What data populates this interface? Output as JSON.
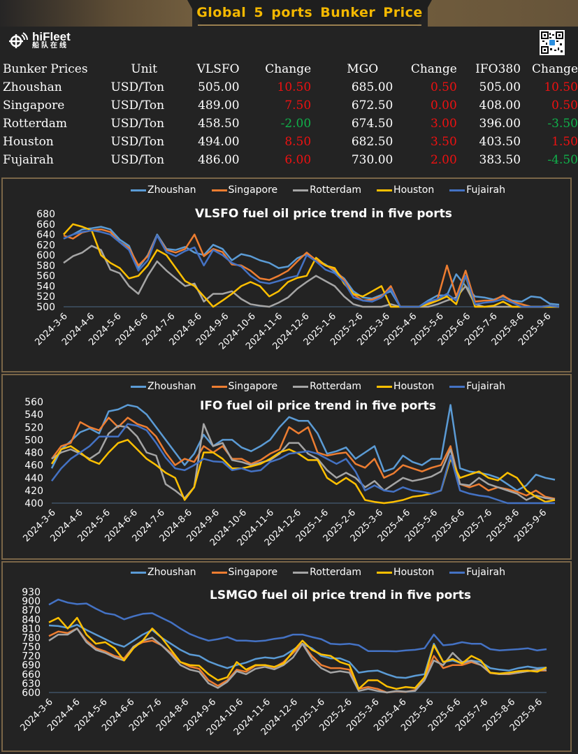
{
  "header": {
    "title": "Global 5 ports  Bunker Price",
    "logo_name": "hiFleet",
    "logo_sub": "船队在线",
    "qr_code": "qr-code"
  },
  "table": {
    "columns": [
      "Bunker Prices",
      "Unit",
      "VLSFO",
      "Change",
      "MGO",
      "Change",
      "IFO380",
      "Change"
    ],
    "rows": [
      {
        "port": "Zhoushan",
        "unit": "USD/Ton",
        "vlsfo": "505.00",
        "vlsfo_change": "10.50",
        "mgo": "685.00",
        "mgo_change": "0.50",
        "ifo380": "505.00",
        "ifo380_change": "10.50"
      },
      {
        "port": "Singapore",
        "unit": "USD/Ton",
        "vlsfo": "489.00",
        "vlsfo_change": "7.50",
        "mgo": "672.50",
        "mgo_change": "0.00",
        "ifo380": "408.00",
        "ifo380_change": "0.50"
      },
      {
        "port": "Rotterdam",
        "unit": "USD/Ton",
        "vlsfo": "458.50",
        "vlsfo_change": "-2.00",
        "mgo": "674.50",
        "mgo_change": "3.00",
        "ifo380": "396.00",
        "ifo380_change": "-3.50"
      },
      {
        "port": "Houston",
        "unit": "USD/Ton",
        "vlsfo": "494.00",
        "vlsfo_change": "8.50",
        "mgo": "682.50",
        "mgo_change": "3.50",
        "ifo380": "403.50",
        "ifo380_change": "1.50"
      },
      {
        "port": "Fujairah",
        "unit": "USD/Ton",
        "vlsfo": "486.00",
        "vlsfo_change": "6.00",
        "mgo": "730.00",
        "mgo_change": "2.00",
        "ifo380": "383.50",
        "ifo380_change": "-4.50"
      }
    ],
    "colors": {
      "up": "#ee1111",
      "down": "#10b04a"
    }
  },
  "legend": [
    {
      "name": "Zhoushan",
      "color": "#5b9bd5"
    },
    {
      "name": "Singapore",
      "color": "#ed7d31"
    },
    {
      "name": "Rotterdam",
      "color": "#a5a5a5"
    },
    {
      "name": "Houston",
      "color": "#ffc000"
    },
    {
      "name": "Fujairah",
      "color": "#4472c4"
    }
  ],
  "chart_data": [
    {
      "type": "line",
      "title": "VLSFO fuel oil price trend in five ports",
      "xlabel": "",
      "ylabel": "",
      "ylim": [
        500,
        680
      ],
      "yticks": [
        500,
        520,
        540,
        560,
        580,
        600,
        620,
        640,
        660,
        680
      ],
      "categories": [
        "2024-3-6",
        "2024-4-6",
        "2024-5-6",
        "2024-6-6",
        "2024-7-6",
        "2024-8-6",
        "2024-9-6",
        "2024-10-6",
        "2024-11-6",
        "2024-12-6",
        "2025-1-6",
        "2025-2-6",
        "2025-3-6",
        "2025-4-6",
        "2025-5-6",
        "2025-6-6",
        "2025-7-6",
        "2025-8-6",
        "2025-9-6"
      ],
      "x_end": 18.45,
      "grid": false,
      "legend_position": "top",
      "series": [
        {
          "name": "Zhoushan",
          "values": [
            632,
            640,
            650,
            652,
            655,
            650,
            630,
            618,
            575,
            600,
            640,
            612,
            610,
            616,
            605,
            600,
            620,
            612,
            590,
            602,
            598,
            590,
            585,
            575,
            578,
            594,
            602,
            590,
            582,
            568,
            555,
            530,
            518,
            516,
            523,
            530,
            495,
            492,
            500,
            512,
            522,
            522,
            563,
            540,
            520,
            518,
            514,
            520,
            512,
            510,
            520,
            518,
            506,
            504
          ]
        },
        {
          "name": "Singapore",
          "values": [
            638,
            632,
            644,
            648,
            650,
            645,
            625,
            614,
            580,
            598,
            638,
            610,
            605,
            612,
            640,
            598,
            612,
            606,
            582,
            580,
            570,
            555,
            552,
            560,
            570,
            588,
            605,
            590,
            580,
            572,
            552,
            524,
            512,
            514,
            520,
            540,
            495,
            492,
            498,
            508,
            515,
            580,
            520,
            570,
            510,
            512,
            512,
            522,
            510,
            505,
            500,
            498,
            502,
            500
          ]
        },
        {
          "name": "Rotterdam",
          "values": [
            585,
            598,
            605,
            618,
            610,
            572,
            565,
            540,
            525,
            560,
            588,
            570,
            555,
            540,
            545,
            510,
            525,
            525,
            530,
            515,
            505,
            502,
            500,
            508,
            518,
            535,
            548,
            560,
            550,
            540,
            520,
            505,
            498,
            498,
            500,
            505,
            490,
            488,
            492,
            498,
            505,
            512,
            518,
            540,
            505,
            500,
            498,
            500,
            497,
            498,
            495,
            492,
            495,
            494
          ]
        },
        {
          "name": "Houston",
          "values": [
            640,
            660,
            655,
            648,
            600,
            585,
            575,
            555,
            560,
            580,
            610,
            600,
            575,
            550,
            540,
            520,
            500,
            512,
            525,
            540,
            548,
            540,
            520,
            530,
            548,
            556,
            560,
            595,
            580,
            575,
            545,
            525,
            520,
            530,
            540,
            500,
            496,
            494,
            498,
            505,
            512,
            520,
            505,
            560,
            500,
            498,
            502,
            510,
            500,
            495,
            496,
            494,
            500,
            498
          ]
        },
        {
          "name": "Fujairah",
          "values": [
            632,
            640,
            645,
            648,
            645,
            640,
            625,
            610,
            570,
            590,
            638,
            606,
            598,
            608,
            615,
            580,
            610,
            600,
            585,
            578,
            560,
            548,
            545,
            550,
            556,
            560,
            600,
            588,
            572,
            565,
            548,
            518,
            512,
            510,
            518,
            535,
            493,
            494,
            500,
            510,
            515,
            525,
            512,
            560,
            505,
            508,
            510,
            515,
            508,
            498,
            500,
            497,
            502,
            500
          ]
        }
      ]
    },
    {
      "type": "line",
      "title": "IFO fuel oil price trend in five ports",
      "xlabel": "",
      "ylabel": "",
      "ylim": [
        400,
        560
      ],
      "yticks": [
        400,
        420,
        440,
        460,
        480,
        500,
        520,
        540,
        560
      ],
      "categories": [
        "2024-3-6",
        "2024-4-6",
        "2024-5-6",
        "2024-6-6",
        "2024-7-6",
        "2024-8-6",
        "2024-9-6",
        "2024-10-6",
        "2024-11-6",
        "2024-12-6",
        "2025-1-6",
        "2025-2-6",
        "2025-3-6",
        "2025-4-6",
        "2025-5-6",
        "2025-6-6",
        "2025-7-6",
        "2025-8-6",
        "2025-9-6"
      ],
      "x_end": 18.45,
      "grid": false,
      "legend_position": "top",
      "series": [
        {
          "name": "Zhoushan",
          "values": [
            455,
            485,
            498,
            512,
            518,
            510,
            545,
            548,
            555,
            552,
            540,
            520,
            500,
            480,
            460,
            478,
            508,
            490,
            500,
            500,
            488,
            482,
            490,
            500,
            520,
            536,
            530,
            530,
            510,
            478,
            482,
            488,
            470,
            480,
            490,
            450,
            455,
            475,
            465,
            460,
            470,
            470,
            555,
            455,
            450,
            448,
            445,
            440,
            430,
            420,
            428,
            445,
            440,
            437
          ]
        },
        {
          "name": "Singapore",
          "values": [
            470,
            490,
            495,
            528,
            520,
            515,
            535,
            520,
            535,
            525,
            520,
            505,
            480,
            460,
            470,
            465,
            490,
            480,
            490,
            470,
            470,
            462,
            468,
            478,
            485,
            520,
            510,
            520,
            480,
            475,
            478,
            480,
            462,
            456,
            470,
            440,
            447,
            460,
            455,
            450,
            456,
            460,
            490,
            430,
            425,
            430,
            420,
            425,
            422,
            418,
            412,
            420,
            410,
            407
          ]
        },
        {
          "name": "Rotterdam",
          "values": [
            470,
            480,
            485,
            478,
            470,
            480,
            510,
            522,
            520,
            505,
            480,
            475,
            430,
            420,
            408,
            425,
            525,
            490,
            495,
            468,
            465,
            460,
            464,
            468,
            478,
            495,
            495,
            478,
            470,
            452,
            440,
            448,
            440,
            425,
            435,
            420,
            430,
            440,
            435,
            438,
            442,
            450,
            485,
            430,
            428,
            440,
            430,
            425,
            420,
            415,
            405,
            412,
            408,
            406
          ]
        },
        {
          "name": "Houston",
          "values": [
            462,
            485,
            490,
            480,
            468,
            462,
            480,
            495,
            500,
            485,
            470,
            460,
            448,
            440,
            405,
            425,
            480,
            480,
            470,
            455,
            455,
            458,
            462,
            470,
            480,
            485,
            478,
            468,
            468,
            440,
            430,
            440,
            430,
            405,
            402,
            400,
            402,
            405,
            410,
            412,
            415,
            420,
            470,
            440,
            445,
            450,
            440,
            436,
            448,
            440,
            420,
            410,
            402,
            405
          ]
        },
        {
          "name": "Fujairah",
          "values": [
            435,
            455,
            470,
            480,
            490,
            505,
            505,
            505,
            525,
            522,
            515,
            495,
            472,
            455,
            452,
            460,
            470,
            466,
            465,
            452,
            455,
            450,
            452,
            465,
            470,
            478,
            480,
            482,
            478,
            470,
            462,
            470,
            450,
            420,
            428,
            420,
            418,
            425,
            420,
            418,
            415,
            420,
            475,
            420,
            415,
            412,
            410,
            405,
            400,
            400,
            400,
            400,
            400,
            400
          ]
        }
      ]
    },
    {
      "type": "line",
      "title": "LSMGO fuel oil price trend in five ports",
      "xlabel": "",
      "ylabel": "",
      "ylim": [
        600,
        930
      ],
      "yticks": [
        600,
        630,
        660,
        690,
        720,
        750,
        780,
        810,
        840,
        870,
        900,
        930
      ],
      "categories": [
        "2024-3-6",
        "2024-4-6",
        "2024-5-6",
        "2024-6-6",
        "2024-7-6",
        "2024-8-6",
        "2024-9-6",
        "2024-10-6",
        "2024-11-6",
        "2024-12-6",
        "2025-1-6",
        "2025-2-6",
        "2025-3-6",
        "2025-4-6",
        "2025-5-6",
        "2025-6-6",
        "2025-7-6",
        "2025-8-6",
        "2025-9-6"
      ],
      "x_end": 18.3,
      "grid": false,
      "legend_position": "top",
      "series": [
        {
          "name": "Zhoushan",
          "values": [
            820,
            818,
            812,
            822,
            805,
            790,
            775,
            760,
            750,
            770,
            790,
            805,
            780,
            760,
            740,
            725,
            720,
            702,
            690,
            680,
            690,
            698,
            710,
            715,
            712,
            720,
            740,
            760,
            745,
            720,
            712,
            712,
            700,
            665,
            670,
            672,
            660,
            650,
            648,
            655,
            660,
            760,
            700,
            705,
            695,
            705,
            700,
            680,
            675,
            672,
            680,
            685,
            680,
            682
          ]
        },
        {
          "name": "Singapore",
          "values": [
            785,
            800,
            795,
            810,
            770,
            745,
            735,
            720,
            712,
            750,
            765,
            770,
            755,
            730,
            700,
            685,
            678,
            640,
            622,
            640,
            675,
            668,
            688,
            690,
            682,
            700,
            730,
            760,
            720,
            690,
            680,
            680,
            675,
            612,
            618,
            612,
            600,
            604,
            602,
            608,
            650,
            720,
            680,
            690,
            690,
            700,
            690,
            664,
            660,
            660,
            665,
            670,
            672,
            672
          ]
        },
        {
          "name": "Rotterdam",
          "values": [
            770,
            790,
            790,
            810,
            765,
            740,
            730,
            715,
            705,
            750,
            770,
            780,
            755,
            725,
            690,
            675,
            668,
            630,
            615,
            635,
            670,
            660,
            678,
            684,
            676,
            690,
            715,
            760,
            710,
            680,
            665,
            670,
            665,
            605,
            612,
            605,
            600,
            605,
            603,
            605,
            640,
            705,
            690,
            730,
            700,
            705,
            690,
            665,
            660,
            662,
            665,
            670,
            675,
            674
          ]
        },
        {
          "name": "Houston",
          "values": [
            830,
            845,
            810,
            845,
            790,
            760,
            765,
            745,
            705,
            745,
            770,
            810,
            780,
            740,
            700,
            690,
            688,
            660,
            640,
            650,
            700,
            675,
            690,
            690,
            684,
            695,
            735,
            770,
            740,
            725,
            720,
            700,
            690,
            612,
            640,
            640,
            620,
            612,
            618,
            615,
            650,
            755,
            700,
            710,
            695,
            720,
            705,
            665,
            662,
            665,
            670,
            672,
            668,
            682
          ]
        },
        {
          "name": "Fujairah",
          "values": [
            888,
            905,
            895,
            890,
            892,
            875,
            860,
            855,
            840,
            850,
            858,
            860,
            845,
            830,
            810,
            792,
            780,
            770,
            775,
            782,
            770,
            770,
            768,
            770,
            776,
            780,
            790,
            790,
            782,
            775,
            760,
            758,
            760,
            755,
            736,
            736,
            736,
            735,
            738,
            740,
            745,
            790,
            755,
            758,
            765,
            760,
            760,
            742,
            738,
            740,
            742,
            745,
            738,
            742
          ]
        }
      ]
    }
  ]
}
